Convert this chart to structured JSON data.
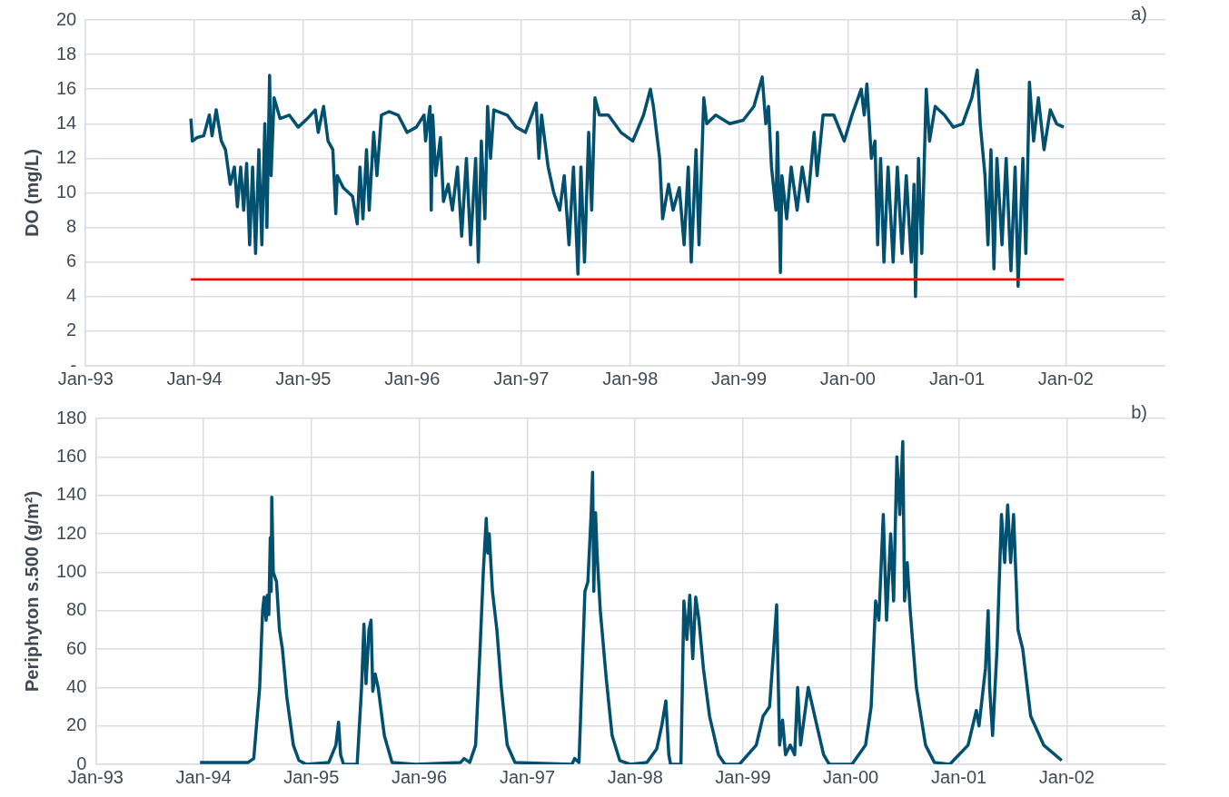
{
  "chart_data": [
    {
      "type": "line",
      "ylabel": "DO (mg/L)",
      "annotations": [
        "a)"
      ],
      "grid": true,
      "legend": false,
      "marker": "none",
      "line_style": "solid",
      "xlim": [
        "1993-01-01",
        "2002-12-01"
      ],
      "ylim": [
        0,
        20
      ],
      "xticks": [
        {
          "value": "1993-01-01",
          "label": "Jan-93"
        },
        {
          "value": "1994-01-01",
          "label": "Jan-94"
        },
        {
          "value": "1995-01-01",
          "label": "Jan-95"
        },
        {
          "value": "1996-01-01",
          "label": "Jan-96"
        },
        {
          "value": "1997-01-01",
          "label": "Jan-97"
        },
        {
          "value": "1998-01-01",
          "label": "Jan-98"
        },
        {
          "value": "1999-01-01",
          "label": "Jan-99"
        },
        {
          "value": "2000-01-01",
          "label": "Jan-00"
        },
        {
          "value": "2001-01-01",
          "label": "Jan-01"
        },
        {
          "value": "2002-01-01",
          "label": "Jan-02"
        }
      ],
      "yticks": [
        {
          "value": 0,
          "label": "-"
        },
        2,
        4,
        6,
        8,
        10,
        12,
        14,
        16,
        18,
        20
      ],
      "ref_lines": [
        {
          "axis": "y",
          "value": 5,
          "color": "#ff0000"
        }
      ],
      "series": [
        {
          "color": "#02506f",
          "x": [
            "1993-12-20",
            "1993-12-25",
            "1994-01-10",
            "1994-02-01",
            "1994-02-20",
            "1994-03-01",
            "1994-03-15",
            "1994-04-01",
            "1994-04-15",
            "1994-05-01",
            "1994-05-15",
            "1994-05-25",
            "1994-06-05",
            "1994-06-15",
            "1994-06-25",
            "1994-07-05",
            "1994-07-15",
            "1994-07-25",
            "1994-08-05",
            "1994-08-15",
            "1994-08-25",
            "1994-09-01",
            "1994-09-10",
            "1994-09-15",
            "1994-09-25",
            "1994-10-15",
            "1994-11-15",
            "1994-12-15",
            "1995-01-15",
            "1995-02-10",
            "1995-02-20",
            "1995-03-10",
            "1995-03-25",
            "1995-04-10",
            "1995-04-20",
            "1995-04-25",
            "1995-05-15",
            "1995-06-15",
            "1995-07-01",
            "1995-07-10",
            "1995-07-20",
            "1995-08-01",
            "1995-08-10",
            "1995-08-25",
            "1995-09-05",
            "1995-09-20",
            "1995-10-15",
            "1995-11-15",
            "1995-12-15",
            "1996-01-15",
            "1996-02-10",
            "1996-02-15",
            "1996-03-01",
            "1996-03-05",
            "1996-03-10",
            "1996-03-20",
            "1996-04-05",
            "1996-04-15",
            "1996-05-01",
            "1996-05-15",
            "1996-06-01",
            "1996-06-15",
            "1996-07-01",
            "1996-07-15",
            "1996-08-01",
            "1996-08-10",
            "1996-08-20",
            "1996-09-01",
            "1996-09-10",
            "1996-09-20",
            "1996-10-01",
            "1996-11-15",
            "1996-12-15",
            "1997-01-15",
            "1997-02-20",
            "1997-03-01",
            "1997-03-10",
            "1997-04-01",
            "1997-04-20",
            "1997-05-10",
            "1997-05-25",
            "1997-06-10",
            "1997-06-25",
            "1997-07-10",
            "1997-07-20",
            "1997-08-01",
            "1997-08-15",
            "1997-08-25",
            "1997-09-05",
            "1997-09-20",
            "1997-10-20",
            "1997-12-01",
            "1998-01-10",
            "1998-02-15",
            "1998-03-10",
            "1998-03-20",
            "1998-04-10",
            "1998-04-20",
            "1998-05-10",
            "1998-05-25",
            "1998-06-15",
            "1998-07-01",
            "1998-07-15",
            "1998-07-25",
            "1998-08-10",
            "1998-08-20",
            "1998-09-05",
            "1998-09-15",
            "1998-10-15",
            "1998-12-01",
            "1999-01-15",
            "1999-02-20",
            "1999-03-20",
            "1999-04-01",
            "1999-04-10",
            "1999-04-20",
            "1999-05-05",
            "1999-05-10",
            "1999-05-20",
            "1999-05-25",
            "1999-06-10",
            "1999-06-25",
            "1999-07-15",
            "1999-08-01",
            "1999-08-20",
            "1999-09-10",
            "1999-09-20",
            "1999-10-10",
            "1999-11-15",
            "1999-12-20",
            "2000-01-15",
            "2000-02-15",
            "2000-02-25",
            "2000-03-05",
            "2000-03-20",
            "2000-04-01",
            "2000-04-10",
            "2000-04-20",
            "2000-05-01",
            "2000-05-15",
            "2000-06-01",
            "2000-06-15",
            "2000-07-01",
            "2000-07-15",
            "2000-08-01",
            "2000-08-10",
            "2000-08-15",
            "2000-08-25",
            "2000-09-05",
            "2000-09-20",
            "2000-10-01",
            "2000-10-20",
            "2000-11-20",
            "2000-12-20",
            "2001-01-20",
            "2001-02-20",
            "2001-03-10",
            "2001-03-20",
            "2001-04-05",
            "2001-04-15",
            "2001-04-25",
            "2001-05-05",
            "2001-05-15",
            "2001-06-01",
            "2001-06-15",
            "2001-07-01",
            "2001-07-15",
            "2001-07-25",
            "2001-08-10",
            "2001-08-20",
            "2001-09-01",
            "2001-09-15",
            "2001-10-01",
            "2001-10-20",
            "2001-11-10",
            "2001-12-01",
            "2001-12-25"
          ],
          "values": [
            14.3,
            13.0,
            13.2,
            13.3,
            14.5,
            13.3,
            14.8,
            13.0,
            12.5,
            10.5,
            11.5,
            9.2,
            11.5,
            9.0,
            11.7,
            7.0,
            11.5,
            6.5,
            12.5,
            7.0,
            14.0,
            8.0,
            16.8,
            11.0,
            15.5,
            14.3,
            14.5,
            13.8,
            14.3,
            14.8,
            13.5,
            15.0,
            13.0,
            12.5,
            8.8,
            11.0,
            10.3,
            9.8,
            8.2,
            11.5,
            8.5,
            12.5,
            9.0,
            13.5,
            11.0,
            14.5,
            14.7,
            14.5,
            13.5,
            13.8,
            14.5,
            13.0,
            15.0,
            9.0,
            14.5,
            11.0,
            13.2,
            9.5,
            10.5,
            9.0,
            11.5,
            7.5,
            12.0,
            7.0,
            12.0,
            6.0,
            13.0,
            8.5,
            15.0,
            12.0,
            14.8,
            14.5,
            13.8,
            13.5,
            15.2,
            12.0,
            14.5,
            11.5,
            10.0,
            9.0,
            11.0,
            7.0,
            11.5,
            5.3,
            11.5,
            6.0,
            13.5,
            9.0,
            15.5,
            14.5,
            14.5,
            13.5,
            13.0,
            14.5,
            16.0,
            15.0,
            12.0,
            8.5,
            10.5,
            9.0,
            10.3,
            7.0,
            11.5,
            6.0,
            12.5,
            7.0,
            15.5,
            14.0,
            14.5,
            14.0,
            14.2,
            15.0,
            16.7,
            14.0,
            15.0,
            11.5,
            9.0,
            13.5,
            5.4,
            11.0,
            8.5,
            11.5,
            9.0,
            11.5,
            9.5,
            13.5,
            11.0,
            14.5,
            14.5,
            13.0,
            14.5,
            16.0,
            14.5,
            16.3,
            12.0,
            13.0,
            7.0,
            12.0,
            6.0,
            11.5,
            6.0,
            11.5,
            6.5,
            11.0,
            6.0,
            10.5,
            4.0,
            12.0,
            6.5,
            16.0,
            13.0,
            15.0,
            14.5,
            13.8,
            14.0,
            15.5,
            17.1,
            14.0,
            11.0,
            7.0,
            12.5,
            5.6,
            12.0,
            7.0,
            12.0,
            5.5,
            11.5,
            4.6,
            12.0,
            6.5,
            16.4,
            13.0,
            15.5,
            12.5,
            14.8,
            14.0,
            13.8
          ]
        }
      ]
    },
    {
      "type": "line",
      "ylabel": "Periphyton s.500 (g/m²)",
      "annotations": [
        "b)"
      ],
      "grid": true,
      "legend": false,
      "marker": "none",
      "line_style": "solid",
      "xlim": [
        "1993-01-01",
        "2002-12-01"
      ],
      "ylim": [
        0,
        180
      ],
      "xticks": [
        {
          "value": "1993-01-01",
          "label": "Jan-93"
        },
        {
          "value": "1994-01-01",
          "label": "Jan-94"
        },
        {
          "value": "1995-01-01",
          "label": "Jan-95"
        },
        {
          "value": "1996-01-01",
          "label": "Jan-96"
        },
        {
          "value": "1997-01-01",
          "label": "Jan-97"
        },
        {
          "value": "1998-01-01",
          "label": "Jan-98"
        },
        {
          "value": "1999-01-01",
          "label": "Jan-99"
        },
        {
          "value": "2000-01-01",
          "label": "Jan-00"
        },
        {
          "value": "2001-01-01",
          "label": "Jan-01"
        },
        {
          "value": "2002-01-01",
          "label": "Jan-02"
        }
      ],
      "yticks": [
        0,
        20,
        40,
        60,
        80,
        100,
        120,
        140,
        160,
        180
      ],
      "series": [
        {
          "color": "#02506f",
          "x": [
            "1993-12-20",
            "1994-06-01",
            "1994-06-20",
            "1994-07-10",
            "1994-07-20",
            "1994-07-25",
            "1994-08-01",
            "1994-08-05",
            "1994-08-10",
            "1994-08-15",
            "1994-08-18",
            "1994-08-20",
            "1994-08-25",
            "1994-09-05",
            "1994-09-15",
            "1994-09-25",
            "1994-10-10",
            "1994-11-01",
            "1994-11-20",
            "1994-12-15",
            "1995-03-01",
            "1995-03-25",
            "1995-04-03",
            "1995-04-10",
            "1995-04-20",
            "1995-06-05",
            "1995-06-20",
            "1995-06-28",
            "1995-07-05",
            "1995-07-15",
            "1995-07-22",
            "1995-07-28",
            "1995-08-05",
            "1995-08-15",
            "1995-09-05",
            "1995-10-01",
            "1995-12-20",
            "1996-05-20",
            "1996-06-01",
            "1996-06-20",
            "1996-07-10",
            "1996-07-25",
            "1996-08-05",
            "1996-08-15",
            "1996-08-20",
            "1996-08-25",
            "1996-09-05",
            "1996-09-20",
            "1996-10-05",
            "1996-10-25",
            "1996-11-20",
            "1997-06-01",
            "1997-06-10",
            "1997-06-25",
            "1997-07-15",
            "1997-07-25",
            "1997-08-05",
            "1997-08-10",
            "1997-08-14",
            "1997-08-20",
            "1997-08-25",
            "1997-09-05",
            "1997-09-25",
            "1997-10-15",
            "1997-11-10",
            "1997-12-15",
            "1998-02-10",
            "1998-03-15",
            "1998-04-01",
            "1998-04-15",
            "1998-04-25",
            "1998-05-01",
            "1998-06-05",
            "1998-06-15",
            "1998-06-25",
            "1998-07-05",
            "1998-07-15",
            "1998-07-25",
            "1998-08-05",
            "1998-08-20",
            "1998-09-10",
            "1998-10-10",
            "1998-11-01",
            "1998-12-20",
            "1999-02-15",
            "1999-03-10",
            "1999-04-01",
            "1999-04-15",
            "1999-04-25",
            "1999-05-05",
            "1999-05-15",
            "1999-05-25",
            "1999-06-10",
            "1999-06-25",
            "1999-07-05",
            "1999-07-15",
            "1999-08-10",
            "1999-09-01",
            "1999-10-01",
            "1999-10-20",
            "2000-01-05",
            "2000-02-20",
            "2000-03-10",
            "2000-03-25",
            "2000-04-05",
            "2000-04-20",
            "2000-05-01",
            "2000-05-15",
            "2000-05-25",
            "2000-06-05",
            "2000-06-15",
            "2000-06-25",
            "2000-07-01",
            "2000-07-10",
            "2000-07-20",
            "2000-08-10",
            "2000-09-10",
            "2000-10-10",
            "2000-12-01",
            "2001-02-01",
            "2001-03-01",
            "2001-03-10",
            "2001-04-01",
            "2001-04-10",
            "2001-04-15",
            "2001-04-25",
            "2001-05-10",
            "2001-05-25",
            "2001-06-05",
            "2001-06-15",
            "2001-06-25",
            "2001-07-05",
            "2001-07-20",
            "2001-08-05",
            "2001-09-01",
            "2001-10-15",
            "2001-12-15"
          ],
          "values": [
            1,
            1,
            3,
            40,
            80,
            87,
            75,
            88,
            78,
            118,
            90,
            139,
            100,
            95,
            70,
            60,
            35,
            10,
            2,
            0,
            1,
            10,
            22,
            5,
            0,
            0,
            40,
            73,
            42,
            70,
            75,
            38,
            47,
            40,
            15,
            1,
            0,
            1,
            3,
            1,
            10,
            60,
            100,
            128,
            110,
            120,
            90,
            70,
            40,
            10,
            1,
            0,
            3,
            1,
            90,
            95,
            130,
            152,
            90,
            131,
            110,
            80,
            45,
            15,
            2,
            0,
            1,
            8,
            20,
            33,
            5,
            0,
            0,
            85,
            65,
            88,
            55,
            87,
            75,
            50,
            25,
            5,
            0,
            0,
            10,
            25,
            30,
            60,
            83,
            10,
            23,
            5,
            10,
            5,
            40,
            10,
            40,
            25,
            5,
            0,
            0,
            10,
            30,
            85,
            75,
            130,
            75,
            120,
            85,
            160,
            130,
            168,
            85,
            105,
            80,
            40,
            10,
            1,
            0,
            10,
            28,
            20,
            50,
            80,
            40,
            15,
            60,
            130,
            105,
            135,
            105,
            130,
            70,
            60,
            25,
            10,
            2
          ]
        }
      ]
    }
  ]
}
